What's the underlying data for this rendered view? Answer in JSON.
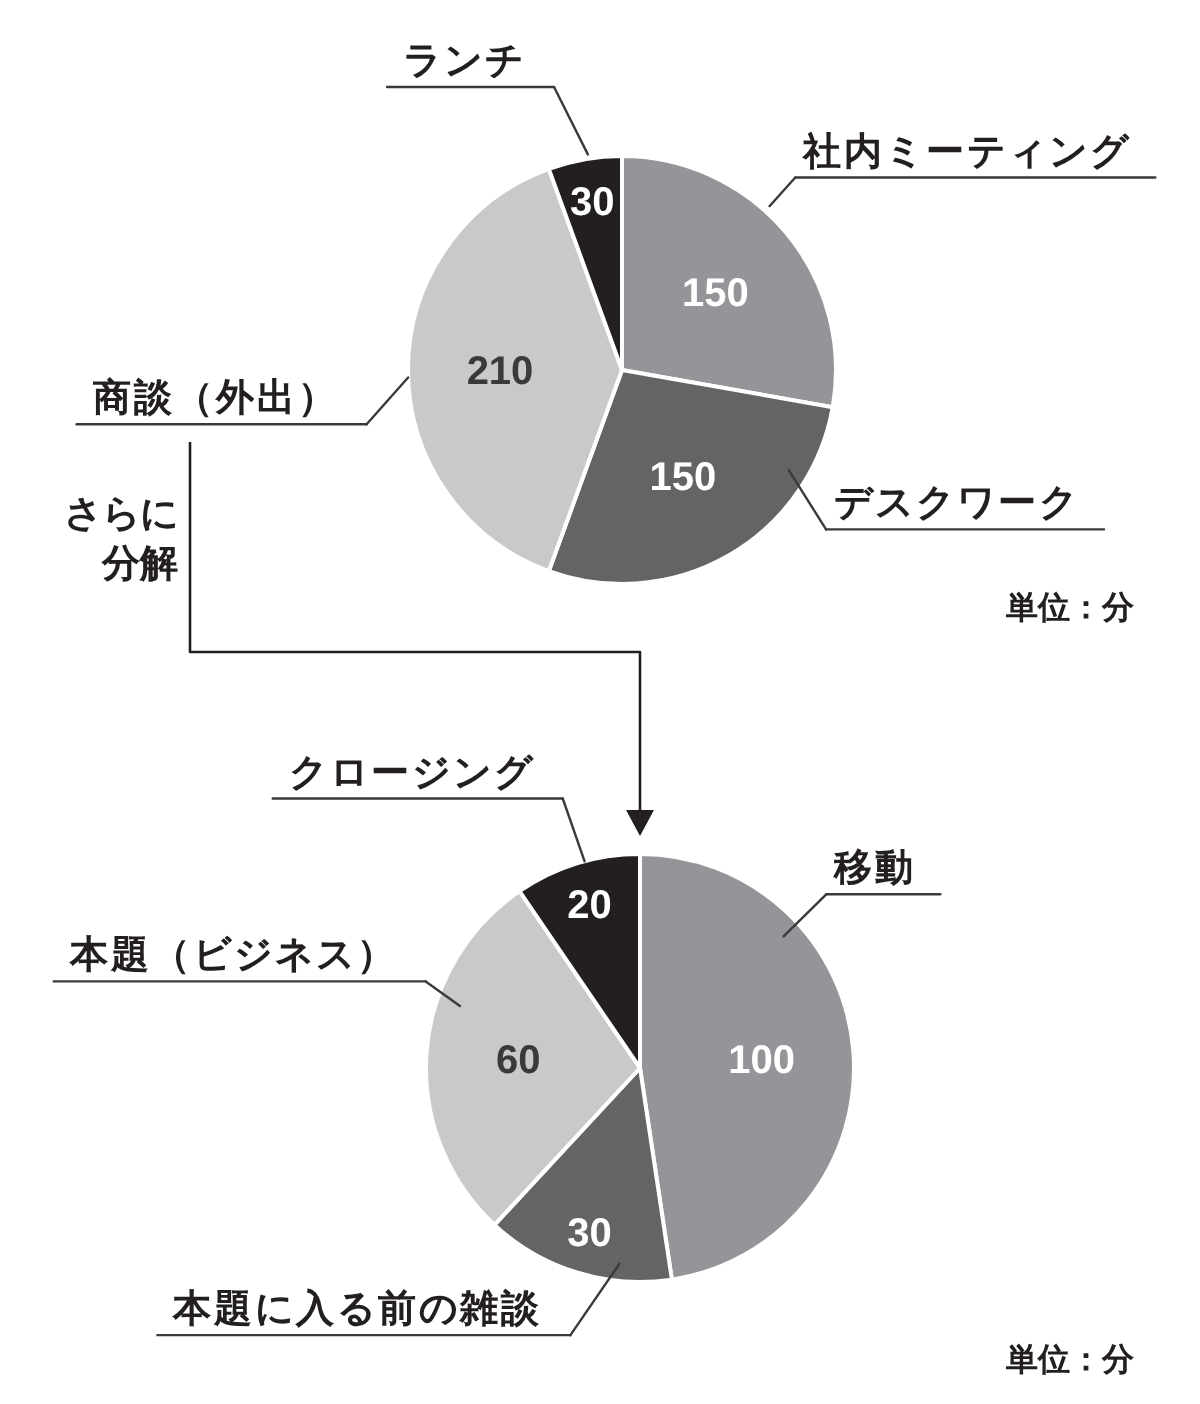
{
  "chart_data": [
    {
      "type": "pie",
      "categories": [
        "社内ミーティング",
        "デスクワーク",
        "商談（外出）",
        "ランチ"
      ],
      "values": [
        150,
        150,
        210,
        30
      ],
      "colors": [
        "#949598",
        "#636466",
        "#c8c9cb",
        "#231f20"
      ],
      "data_labels": true,
      "annotations": [
        "さらに分解",
        "単位：分"
      ]
    },
    {
      "type": "pie",
      "categories": [
        "移動",
        "本題に入る前の雑談",
        "本題（ビジネス）",
        "クロージング"
      ],
      "values": [
        100,
        30,
        60,
        20
      ],
      "colors": [
        "#949598",
        "#636466",
        "#c8c9cb",
        "#231f20"
      ],
      "data_labels": true,
      "annotations": [
        "単位：分"
      ]
    }
  ]
}
